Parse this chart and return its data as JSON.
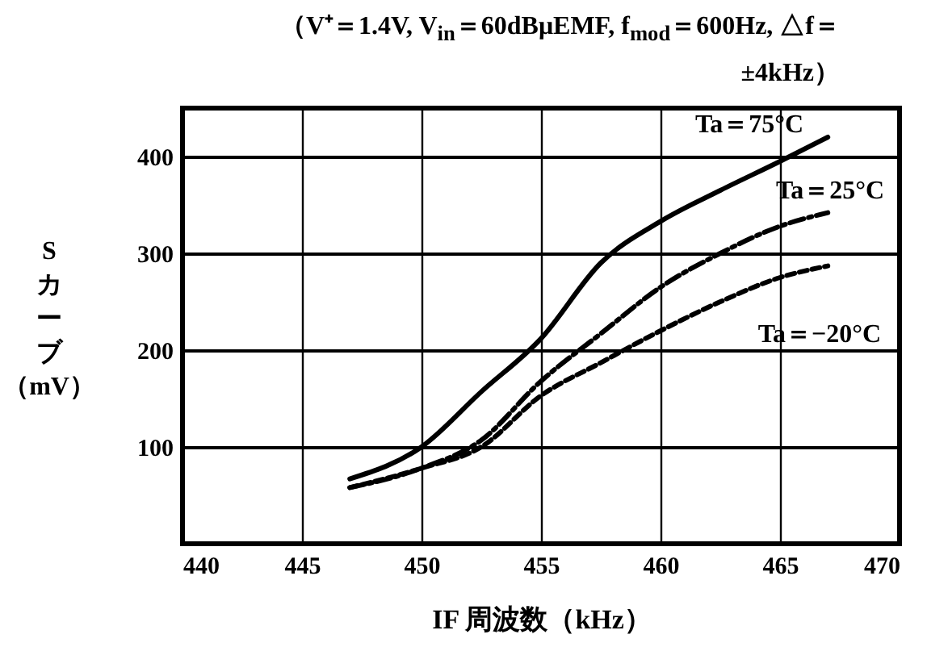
{
  "chart_data": {
    "type": "line",
    "title": "（V⁺＝1.4V,  V$_{in}$＝60dBμEMF, f$_{mod}$＝600Hz, △f＝±4kHz）",
    "xlabel": "IF 周波数（kHz）",
    "ylabel": "Sカーブ（mV）",
    "x": [
      447,
      450,
      452.5,
      455,
      457.5,
      460,
      462.5,
      465,
      467
    ],
    "series": [
      {
        "color": "#000000",
        "line_style": "solid",
        "values": [
          67,
          100,
          157,
          212,
          290,
          333,
          365,
          395,
          420
        ]
      },
      {
        "color": "#000000",
        "line_style": "dashed",
        "values": [
          58,
          78,
          107,
          168,
          217,
          265,
          300,
          328,
          342
        ]
      },
      {
        "color": "#000000",
        "line_style": "dotted",
        "values": [
          58,
          78,
          100,
          153,
          187,
          220,
          250,
          275,
          287
        ]
      }
    ],
    "annotations": [
      "Ta＝75°C",
      "Ta＝25°C",
      "Ta＝−20°C"
    ],
    "xlim": [
      440,
      470
    ],
    "xticks": [
      440,
      445,
      450,
      455,
      460,
      465,
      470
    ],
    "ylim": [
      0,
      450
    ],
    "yticks": [
      100,
      200,
      300,
      400
    ],
    "grid": true,
    "legend": false
  }
}
